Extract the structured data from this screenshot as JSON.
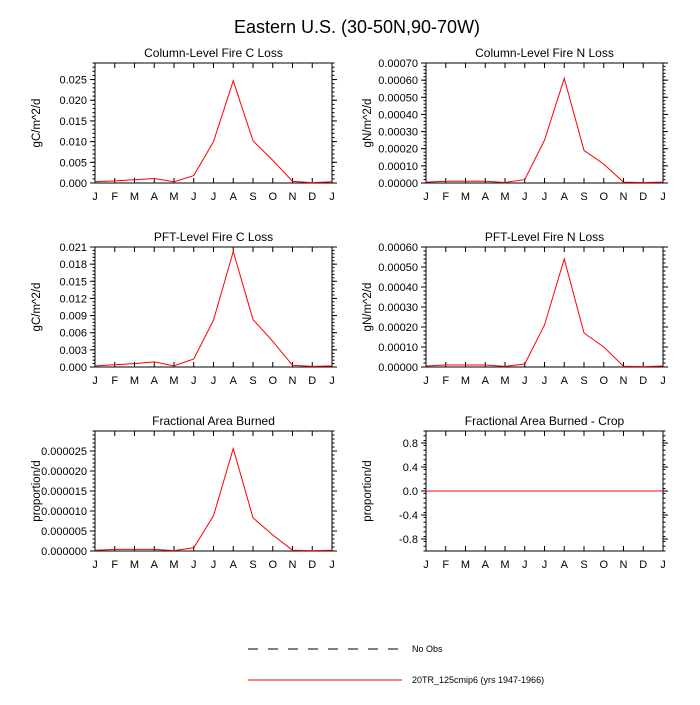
{
  "figure_title": "Eastern U.S. (30-50N,90-70W)",
  "colors": {
    "model": "#ff0000",
    "obs": "#000000",
    "axes": "#000000"
  },
  "legend": [
    {
      "label": "No Obs",
      "style": "dashed",
      "color": "#000000"
    },
    {
      "label": "20TR_125cmip6 (yrs 1947-1966)",
      "style": "solid",
      "color": "#ff0000"
    }
  ],
  "chart_data": [
    {
      "type": "line",
      "title": "Column-Level Fire C Loss",
      "ylabel": "gC/m^2/d",
      "x": [
        "J",
        "F",
        "M",
        "A",
        "M",
        "J",
        "J",
        "A",
        "S",
        "O",
        "N",
        "D",
        "J"
      ],
      "ylim": [
        0,
        0.029
      ],
      "yticks": [
        "0.000",
        "0.005",
        "0.010",
        "0.015",
        "0.020",
        "0.025"
      ],
      "ytick_values": [
        0,
        0.005,
        0.01,
        0.015,
        0.02,
        0.025
      ],
      "series": [
        {
          "values": [
            0.0003,
            0.0005,
            0.0008,
            0.0011,
            0.0003,
            0.0018,
            0.01,
            0.0247,
            0.0102,
            0.0055,
            0.0004,
            0.0001,
            0.0003
          ]
        }
      ]
    },
    {
      "type": "line",
      "title": "Column-Level Fire N Loss",
      "ylabel": "gN/m^2/d",
      "x": [
        "J",
        "F",
        "M",
        "A",
        "M",
        "J",
        "J",
        "A",
        "S",
        "O",
        "N",
        "D",
        "J"
      ],
      "ylim": [
        0,
        0.0007
      ],
      "yticks": [
        "0.00000",
        "0.00010",
        "0.00020",
        "0.00030",
        "0.00040",
        "0.00050",
        "0.00060",
        "0.00070"
      ],
      "ytick_values": [
        0,
        0.0001,
        0.0002,
        0.0003,
        0.0004,
        0.0005,
        0.0006,
        0.0007
      ],
      "series": [
        {
          "values": [
            5e-06,
            1e-05,
            1e-05,
            1e-05,
            3e-06,
            2e-05,
            0.00025,
            0.00061,
            0.00019,
            0.00011,
            5e-06,
            3e-06,
            5e-06
          ]
        }
      ]
    },
    {
      "type": "line",
      "title": "PFT-Level Fire C Loss",
      "ylabel": "gC/m^2/d",
      "x": [
        "J",
        "F",
        "M",
        "A",
        "M",
        "J",
        "J",
        "A",
        "S",
        "O",
        "N",
        "D",
        "J"
      ],
      "ylim": [
        0,
        0.021
      ],
      "yticks": [
        "0.000",
        "0.003",
        "0.006",
        "0.009",
        "0.012",
        "0.015",
        "0.018",
        "0.021"
      ],
      "ytick_values": [
        0,
        0.003,
        0.006,
        0.009,
        0.012,
        0.015,
        0.018,
        0.021
      ],
      "series": [
        {
          "values": [
            0.0002,
            0.0004,
            0.0006,
            0.0009,
            0.0002,
            0.0014,
            0.0082,
            0.0202,
            0.0083,
            0.0045,
            0.0003,
            0.0001,
            0.0002
          ]
        }
      ]
    },
    {
      "type": "line",
      "title": "PFT-Level Fire N Loss",
      "ylabel": "gN/m^2/d",
      "x": [
        "J",
        "F",
        "M",
        "A",
        "M",
        "J",
        "J",
        "A",
        "S",
        "O",
        "N",
        "D",
        "J"
      ],
      "ylim": [
        0,
        0.0006
      ],
      "yticks": [
        "0.00000",
        "0.00010",
        "0.00020",
        "0.00030",
        "0.00040",
        "0.00050",
        "0.00060"
      ],
      "ytick_values": [
        0,
        0.0001,
        0.0002,
        0.0003,
        0.0004,
        0.0005,
        0.0006
      ],
      "series": [
        {
          "values": [
            5e-06,
            1e-05,
            1e-05,
            1e-05,
            3e-06,
            1.5e-05,
            0.00021,
            0.00054,
            0.00017,
            0.0001,
            4e-06,
            2e-06,
            5e-06
          ]
        }
      ]
    },
    {
      "type": "line",
      "title": "Fractional Area Burned",
      "ylabel": "proportion/d",
      "x": [
        "J",
        "F",
        "M",
        "A",
        "M",
        "J",
        "J",
        "A",
        "S",
        "O",
        "N",
        "D",
        "J"
      ],
      "ylim": [
        0,
        3e-05
      ],
      "yticks": [
        "0.000000",
        "0.000005",
        "0.000010",
        "0.000015",
        "0.000020",
        "0.000025"
      ],
      "ytick_values": [
        0,
        5e-06,
        1e-05,
        1.5e-05,
        2e-05,
        2.5e-05
      ],
      "series": [
        {
          "values": [
            2e-07,
            4e-07,
            4e-07,
            4e-07,
            1e-07,
            8e-07,
            8.8e-06,
            2.56e-05,
            8.3e-06,
            4e-06,
            2e-07,
            1e-07,
            2e-07
          ]
        }
      ]
    },
    {
      "type": "line",
      "title": "Fractional Area Burned - Crop",
      "ylabel": "proportion/d",
      "x": [
        "J",
        "F",
        "M",
        "A",
        "M",
        "J",
        "J",
        "A",
        "S",
        "O",
        "N",
        "D",
        "J"
      ],
      "ylim": [
        -1.0,
        1.0
      ],
      "yticks": [
        "-0.8",
        "-0.4",
        "0.0",
        "0.4",
        "0.8"
      ],
      "ytick_values": [
        -0.8,
        -0.4,
        0.0,
        0.4,
        0.8
      ],
      "series": [
        {
          "values": [
            0,
            0,
            0,
            0,
            0,
            0,
            0,
            0,
            0,
            0,
            0,
            0,
            0
          ]
        }
      ]
    }
  ]
}
